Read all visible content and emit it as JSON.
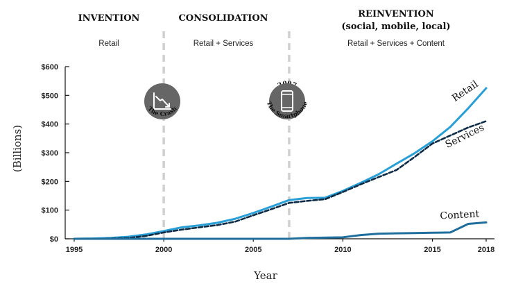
{
  "eras": [
    {
      "title": "INVENTION",
      "title2": "",
      "subtitle": "Retail"
    },
    {
      "title": "CONSOLIDATION",
      "title2": "",
      "subtitle": "Retail + Services"
    },
    {
      "title": "REINVENTION",
      "title2": "(social, mobile, local)",
      "subtitle": "Retail + Services + Content"
    }
  ],
  "events": [
    {
      "year_label": "2000",
      "caption": "The Crash",
      "icon": "chart-crash-icon"
    },
    {
      "year_label": "2007",
      "caption": "The Smartphone",
      "icon": "smartphone-icon"
    }
  ],
  "colors": {
    "retail": "#2a9fd6",
    "services": "#0d2b45",
    "content": "#1f6e9c",
    "badge": "#666666",
    "divider": "#d0d0d0"
  },
  "chart_data": {
    "type": "line",
    "xlabel": "Year",
    "ylabel": "(Billions)",
    "xlim": [
      1995,
      2018
    ],
    "ylim": [
      0,
      600
    ],
    "x_ticks": [
      1995,
      2000,
      2005,
      2010,
      2015,
      2018
    ],
    "x_tick_labels": [
      "1995",
      "2000",
      "2005",
      "2010",
      "2015",
      "2018"
    ],
    "y_ticks": [
      0,
      100,
      200,
      300,
      400,
      500,
      600
    ],
    "y_tick_labels": [
      "$0",
      "$100",
      "$200",
      "$300",
      "$400",
      "$500",
      "$600"
    ],
    "dividers": [
      2000,
      2007
    ],
    "grid": false,
    "series": [
      {
        "name": "Retail",
        "style": "solid",
        "points": [
          [
            1995,
            0
          ],
          [
            1996,
            1
          ],
          [
            1997,
            3
          ],
          [
            1998,
            7
          ],
          [
            1999,
            15
          ],
          [
            2000,
            27
          ],
          [
            2001,
            40
          ],
          [
            2002,
            47
          ],
          [
            2003,
            56
          ],
          [
            2004,
            70
          ],
          [
            2005,
            90
          ],
          [
            2006,
            112
          ],
          [
            2007,
            135
          ],
          [
            2008,
            142
          ],
          [
            2009,
            143
          ],
          [
            2010,
            167
          ],
          [
            2011,
            195
          ],
          [
            2012,
            225
          ],
          [
            2013,
            262
          ],
          [
            2014,
            298
          ],
          [
            2015,
            340
          ],
          [
            2016,
            390
          ],
          [
            2017,
            455
          ],
          [
            2018,
            525
          ]
        ]
      },
      {
        "name": "Services",
        "style": "dashed",
        "points": [
          [
            1995,
            0
          ],
          [
            1996,
            0
          ],
          [
            1997,
            1
          ],
          [
            1998,
            3
          ],
          [
            1999,
            10
          ],
          [
            2000,
            22
          ],
          [
            2001,
            32
          ],
          [
            2002,
            40
          ],
          [
            2003,
            48
          ],
          [
            2004,
            60
          ],
          [
            2005,
            82
          ],
          [
            2006,
            103
          ],
          [
            2007,
            125
          ],
          [
            2008,
            132
          ],
          [
            2009,
            138
          ],
          [
            2010,
            163
          ],
          [
            2011,
            190
          ],
          [
            2012,
            215
          ],
          [
            2013,
            240
          ],
          [
            2014,
            285
          ],
          [
            2015,
            332
          ],
          [
            2016,
            360
          ],
          [
            2017,
            388
          ],
          [
            2018,
            410
          ]
        ]
      },
      {
        "name": "Content",
        "style": "solid",
        "points": [
          [
            1995,
            0
          ],
          [
            2000,
            0
          ],
          [
            2005,
            0
          ],
          [
            2007,
            0
          ],
          [
            2008,
            3
          ],
          [
            2010,
            5
          ],
          [
            2011,
            13
          ],
          [
            2012,
            18
          ],
          [
            2013,
            19
          ],
          [
            2014,
            20
          ],
          [
            2015,
            21
          ],
          [
            2016,
            22
          ],
          [
            2017,
            52
          ],
          [
            2018,
            57
          ]
        ]
      }
    ]
  }
}
